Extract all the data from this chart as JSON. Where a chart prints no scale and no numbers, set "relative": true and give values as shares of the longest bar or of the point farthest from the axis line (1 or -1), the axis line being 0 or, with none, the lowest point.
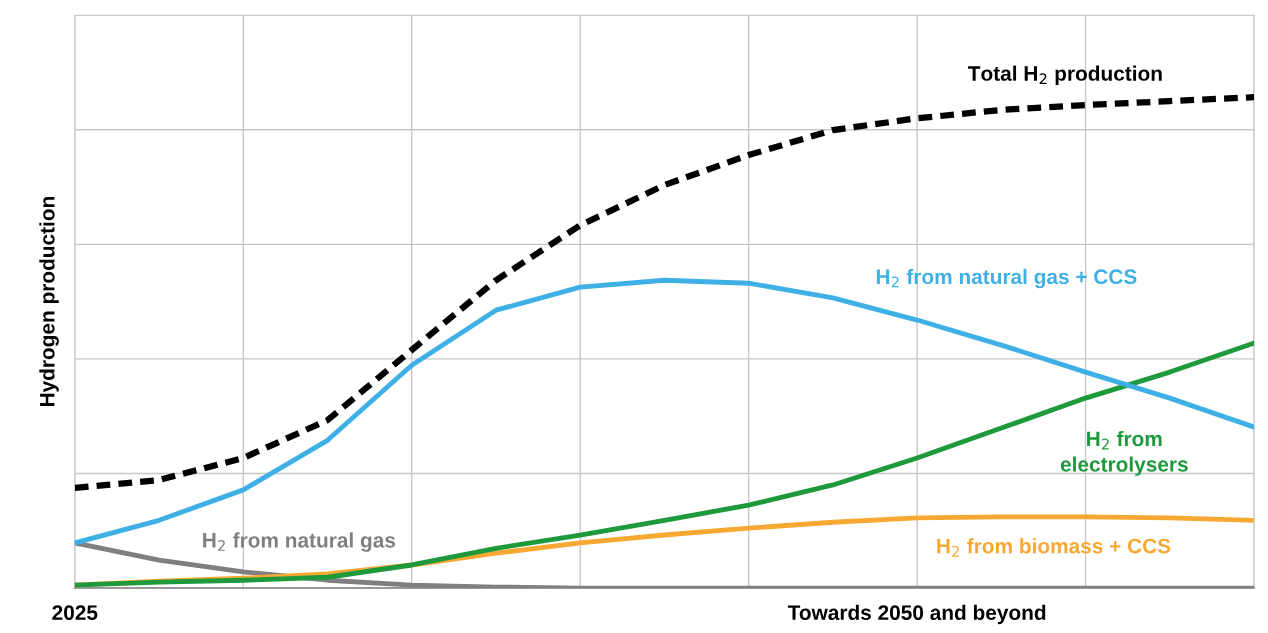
{
  "chart_data": {
    "type": "line",
    "relative": true,
    "ylabel": "Hydrogen production",
    "grid": true,
    "line_style": "solid",
    "categories": [
      "2025",
      null,
      null,
      null,
      null,
      null,
      null,
      null,
      null,
      null,
      "Towards 2050 and beyond",
      null,
      null,
      null,
      null
    ],
    "series": [
      {
        "name": "Total H$_{2}$ production",
        "color": "#000000",
        "line_style": "dashed",
        "values": [
          0.204,
          0.22,
          0.265,
          0.342,
          0.485,
          0.627,
          0.739,
          0.821,
          0.882,
          0.933,
          0.957,
          0.974,
          0.984,
          0.992,
          1.0
        ]
      },
      {
        "name": "H$_{2}$ from natural gas + CCS",
        "color": "#3fb0e6",
        "values": [
          0.092,
          0.138,
          0.2,
          0.301,
          0.454,
          0.566,
          0.613,
          0.627,
          0.621,
          0.591,
          0.546,
          0.495,
          0.44,
          0.387,
          0.328
        ]
      },
      {
        "name": "H$_{2}$ from\nelectrolysers",
        "color": "#1e9a3c",
        "values": [
          0.006,
          0.012,
          0.016,
          0.022,
          0.047,
          0.081,
          0.108,
          0.138,
          0.169,
          0.21,
          0.265,
          0.326,
          0.387,
          0.44,
          0.499
        ]
      },
      {
        "name": "H$_{2}$ from biomass + CCS",
        "color": "#f7a833",
        "values": [
          0.006,
          0.014,
          0.02,
          0.029,
          0.047,
          0.071,
          0.092,
          0.108,
          0.122,
          0.134,
          0.143,
          0.145,
          0.145,
          0.143,
          0.138
        ]
      },
      {
        "name": "H$_{2}$ from natural gas",
        "color": "#7f7f7f",
        "values": [
          0.092,
          0.057,
          0.033,
          0.016,
          0.006,
          0.002,
          0,
          0,
          0,
          0,
          0,
          0,
          0,
          0,
          0
        ]
      }
    ]
  }
}
